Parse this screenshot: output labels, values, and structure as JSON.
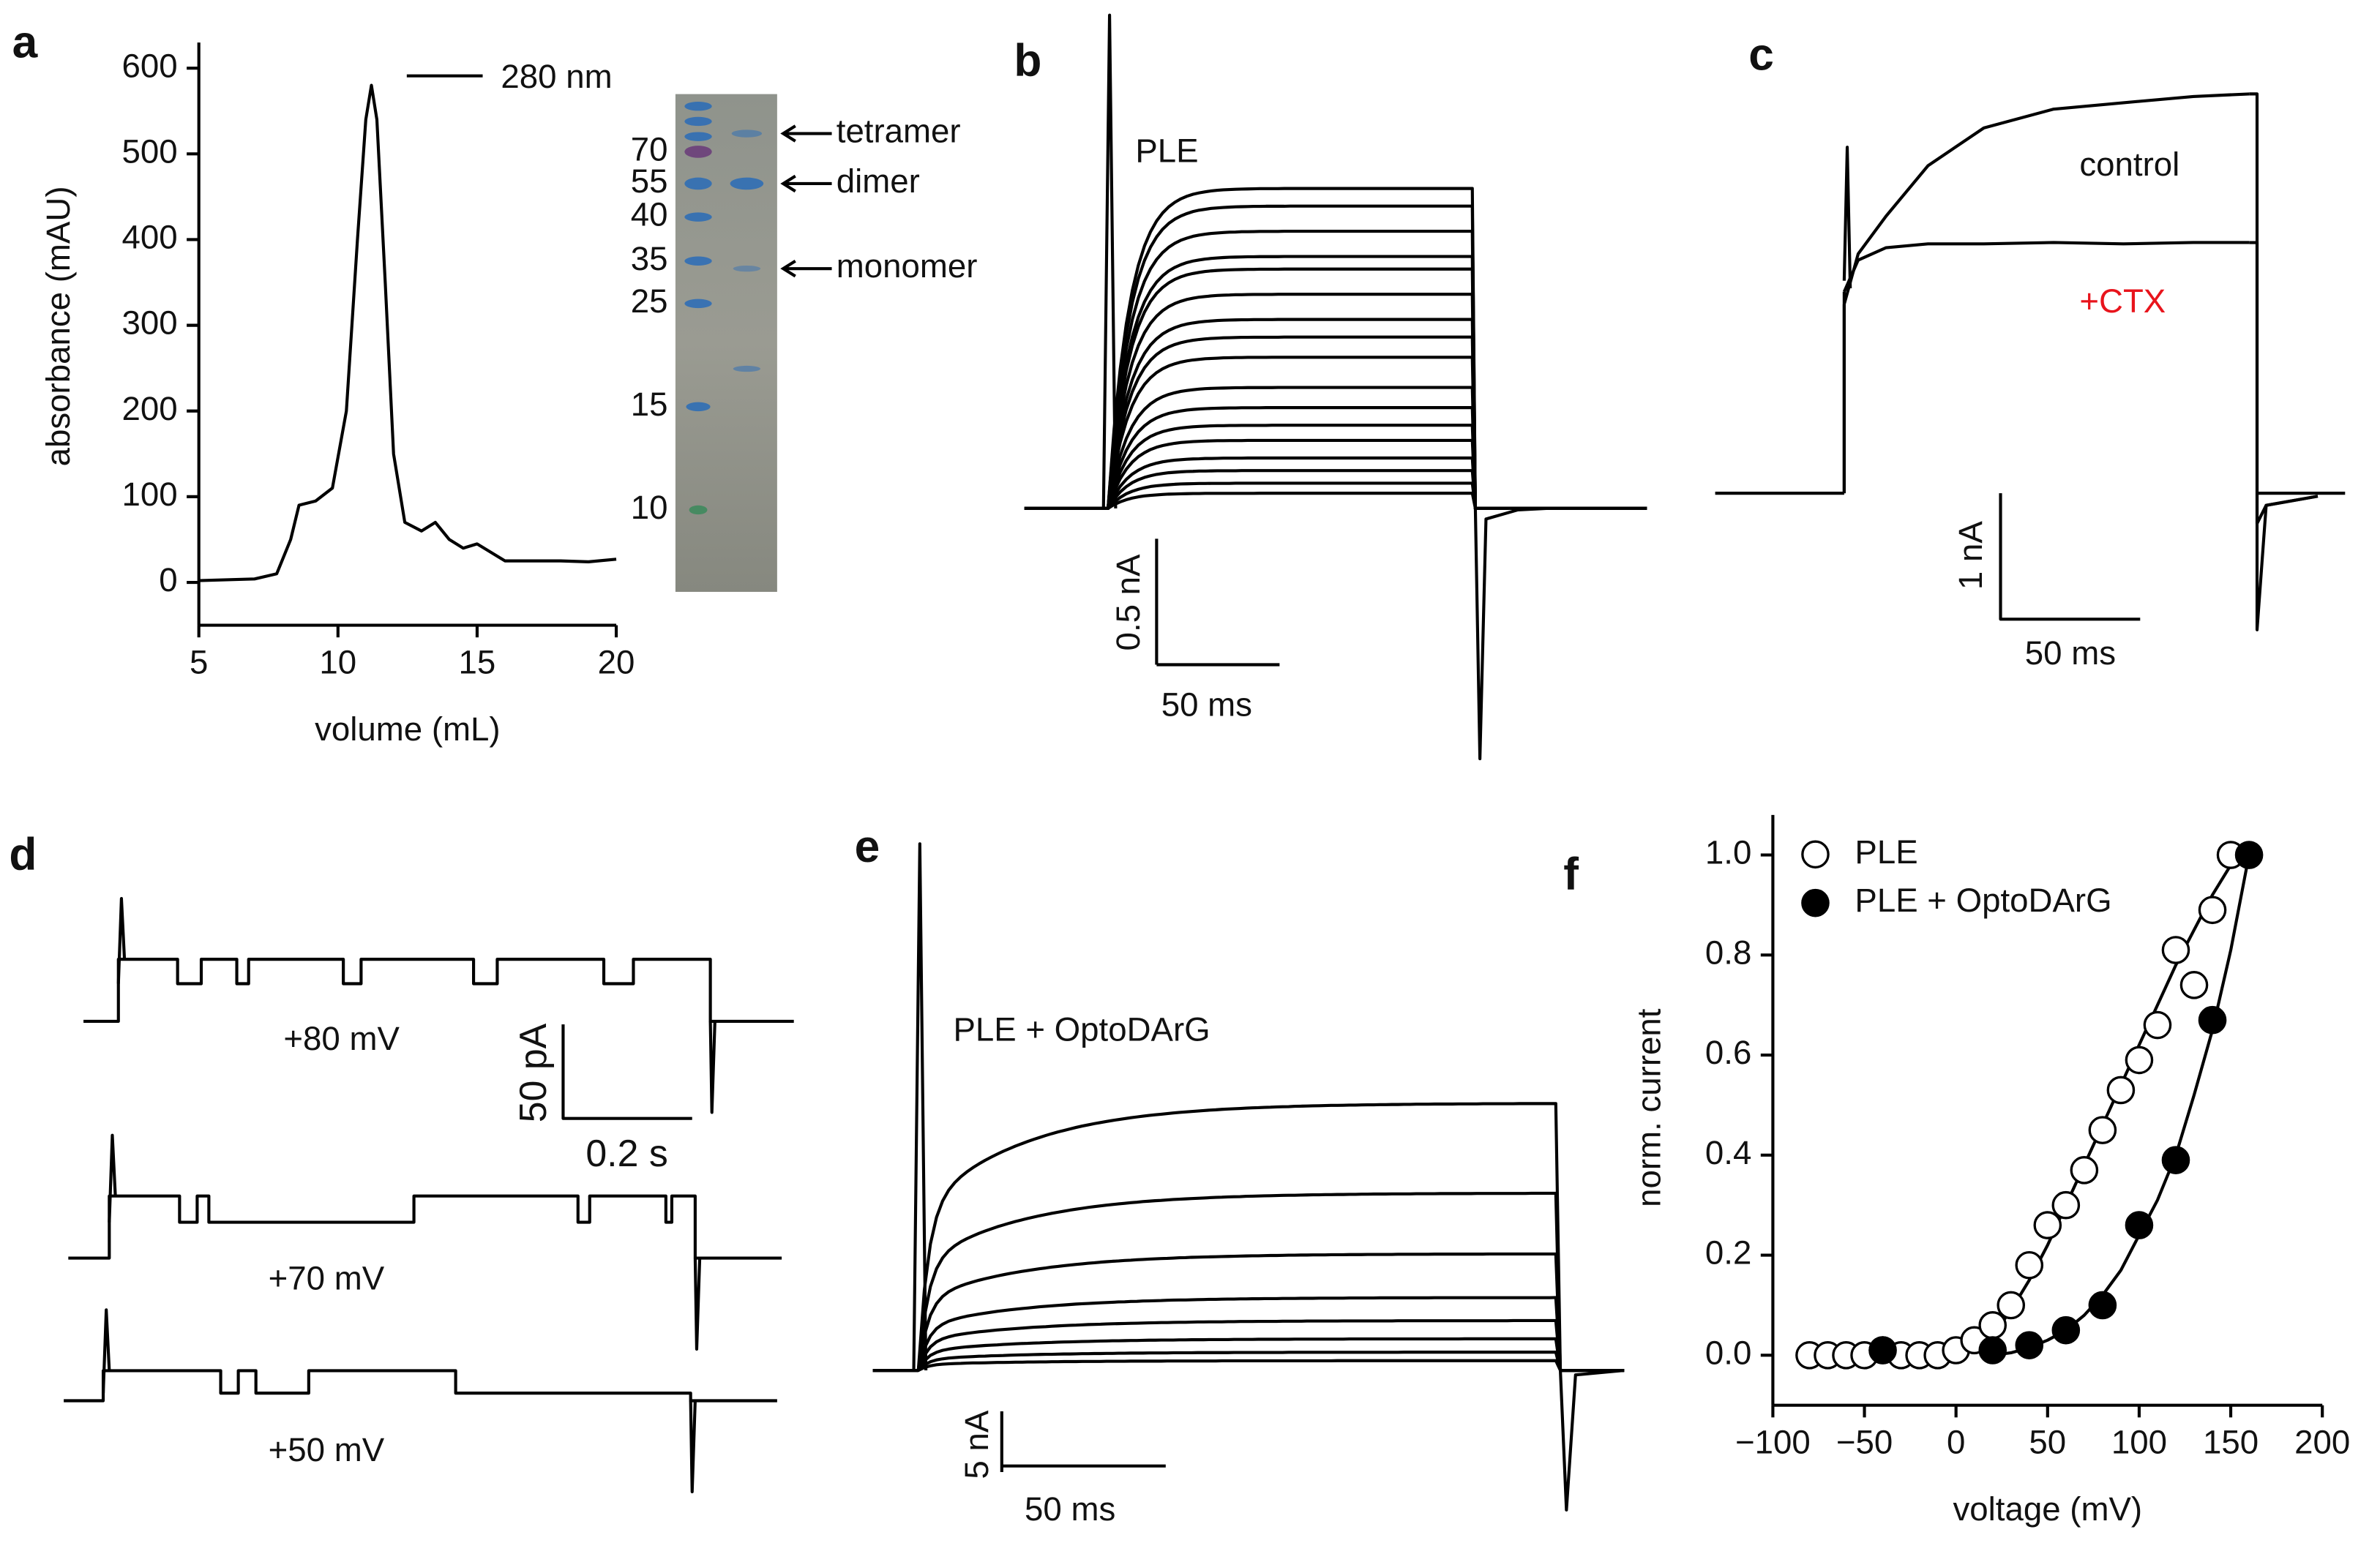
{
  "panels": [
    "a",
    "b",
    "c",
    "d",
    "e",
    "f"
  ],
  "gel": {
    "markers": [
      70,
      55,
      40,
      35,
      25,
      15,
      10
    ],
    "bands": [
      "tetramer",
      "dimer",
      "monomer"
    ]
  },
  "chart_data": [
    {
      "type": "line",
      "series": [
        {
          "name": "280 nm",
          "color": "#000000",
          "x": [
            5,
            7,
            7.8,
            8.3,
            8.6,
            9.2,
            9.8,
            10.3,
            10.7,
            11.0,
            11.2,
            11.4,
            11.7,
            12.0,
            12.4,
            13,
            13.5,
            14,
            14.5,
            15,
            15.5,
            16,
            17,
            18,
            19,
            20
          ],
          "values": [
            2,
            4,
            10,
            50,
            90,
            95,
            110,
            200,
            400,
            540,
            580,
            540,
            350,
            150,
            70,
            60,
            70,
            50,
            40,
            45,
            35,
            25,
            25,
            25,
            24,
            27
          ]
        }
      ],
      "xlabel": "volume (mL)",
      "ylabel": "absorbance (mAU)",
      "xlim": [
        5,
        20
      ],
      "ylim": [
        -50,
        630
      ],
      "xticks": [
        5,
        10,
        15,
        20
      ],
      "yticks": [
        0,
        100,
        200,
        300,
        400,
        500,
        600
      ]
    },
    {
      "type": "traces",
      "label": "PLE",
      "levels": [
        1.27,
        1.2,
        1.1,
        1.0,
        0.95,
        0.85,
        0.75,
        0.68,
        0.6,
        0.48,
        0.4,
        0.33,
        0.27,
        0.2,
        0.15,
        0.1,
        0.06
      ],
      "scale_y": "0.5 nA",
      "scale_x": "50 ms"
    },
    {
      "type": "traces-timed",
      "x": [
        0,
        5,
        15,
        30,
        50,
        75,
        100,
        125,
        145
      ],
      "series": [
        {
          "name": "control",
          "color": "#000000",
          "values": [
            1.5,
            1.9,
            2.2,
            2.6,
            2.9,
            3.05,
            3.1,
            3.15,
            3.17
          ]
        },
        {
          "name": "+CTX",
          "color": "#e8141c",
          "values": [
            1.6,
            1.85,
            1.95,
            1.98,
            1.98,
            1.99,
            1.98,
            1.99,
            1.99
          ]
        }
      ],
      "scale_y": "1 nA",
      "scale_x": "50 ms"
    },
    {
      "type": "single-channel",
      "traces": [
        {
          "label": "+80 mV",
          "leak": 20,
          "open": 13
        },
        {
          "label": "+70 mV",
          "leak": 19,
          "open": 14
        },
        {
          "label": "+50 mV",
          "leak": 4,
          "open": 12
        }
      ],
      "scale_y": "50 pA",
      "scale_x": "0.2 s"
    },
    {
      "type": "traces",
      "label": "PLE + OptoDArG",
      "levels": [
        22,
        14.6,
        9.6,
        6,
        4.1,
        2.6,
        1.5,
        0.8
      ],
      "scale_y": "5 nA",
      "scale_x": "50 ms"
    },
    {
      "type": "scatter",
      "xlabel": "voltage (mV)",
      "ylabel": "norm. current",
      "xlim": [
        -100,
        200
      ],
      "ylim": [
        -0.1,
        1.08
      ],
      "xticks": [
        {
          "value": -100,
          "label": "−100"
        },
        {
          "value": -50,
          "label": "−50"
        },
        0,
        50,
        100,
        150,
        200
      ],
      "yticks": [
        {
          "value": 0,
          "label": "0.0"
        },
        0.2,
        0.4,
        0.6,
        0.8,
        {
          "value": 1,
          "label": "1.0"
        }
      ],
      "legend": "top-left",
      "series": [
        {
          "name": "PLE",
          "color": "#ffffff",
          "x": [
            -80,
            -70,
            -60,
            -50,
            -40,
            -30,
            -20,
            -10,
            0,
            10,
            20,
            30,
            40,
            50,
            60,
            70,
            80,
            90,
            100,
            110,
            120,
            130,
            140,
            150
          ],
          "values": [
            0,
            0,
            0,
            0,
            0.01,
            0,
            0,
            0,
            0.01,
            0.03,
            0.06,
            0.1,
            0.18,
            0.26,
            0.3,
            0.37,
            0.45,
            0.53,
            0.59,
            0.66,
            0.81,
            0.74,
            0.89,
            1.0
          ],
          "fit_x": [
            -80,
            0,
            10,
            20,
            30,
            40,
            50,
            60,
            70,
            80,
            90,
            100,
            110,
            120,
            130,
            140,
            150
          ],
          "fit": [
            0,
            0,
            0.01,
            0.04,
            0.09,
            0.15,
            0.22,
            0.3,
            0.38,
            0.46,
            0.54,
            0.62,
            0.7,
            0.78,
            0.85,
            0.92,
            0.98
          ]
        },
        {
          "name": "PLE + OptoDArG",
          "color": "#000000",
          "x": [
            -40,
            20,
            40,
            60,
            80,
            100,
            120,
            140,
            160
          ],
          "values": [
            0.01,
            0.01,
            0.02,
            0.05,
            0.1,
            0.26,
            0.39,
            0.67,
            1.0
          ],
          "fit_x": [
            20,
            30,
            40,
            50,
            60,
            70,
            80,
            90,
            100,
            110,
            120,
            130,
            140,
            150,
            160
          ],
          "fit": [
            0,
            0.005,
            0.015,
            0.03,
            0.05,
            0.08,
            0.12,
            0.17,
            0.24,
            0.31,
            0.4,
            0.52,
            0.65,
            0.81,
            1.0
          ]
        }
      ]
    }
  ]
}
